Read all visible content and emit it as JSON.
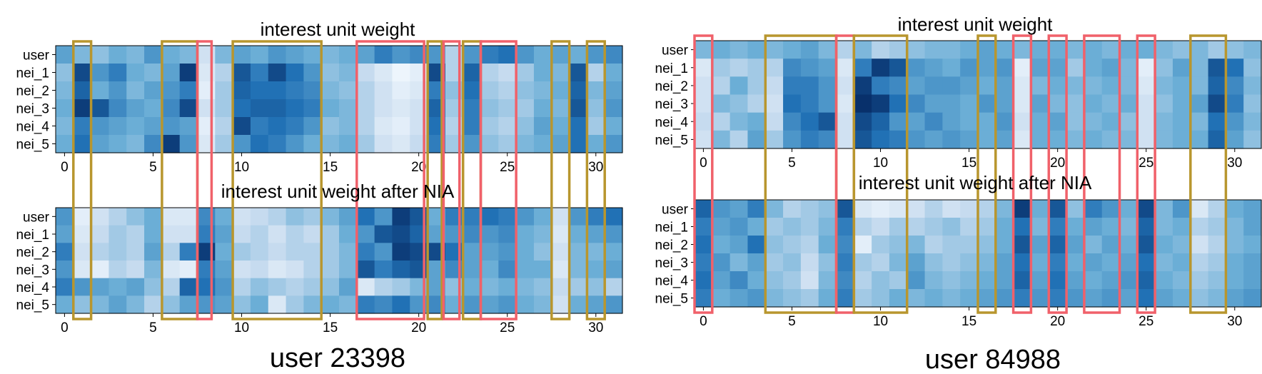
{
  "chart_data": [
    {
      "type": "heatmap",
      "title": "interest unit weight",
      "rows": [
        "user",
        "nei_1",
        "nei_2",
        "nei_3",
        "nei_4",
        "nei_5"
      ],
      "x_ticks": [
        0,
        5,
        10,
        15,
        20,
        25,
        30
      ],
      "columns": 32,
      "colormap": "Blues",
      "values": [
        [
          0.55,
          0.45,
          0.4,
          0.5,
          0.45,
          0.6,
          0.5,
          0.45,
          0.2,
          0.45,
          0.55,
          0.5,
          0.6,
          0.55,
          0.5,
          0.45,
          0.5,
          0.55,
          0.7,
          0.6,
          0.65,
          0.6,
          0.3,
          0.6,
          0.7,
          0.75,
          0.6,
          0.5,
          0.55,
          0.5,
          0.6,
          0.65
        ],
        [
          0.4,
          0.9,
          0.6,
          0.7,
          0.5,
          0.45,
          0.55,
          0.95,
          0.15,
          0.3,
          0.85,
          0.7,
          0.9,
          0.75,
          0.6,
          0.4,
          0.45,
          0.25,
          0.15,
          0.05,
          0.1,
          0.9,
          0.3,
          0.8,
          0.3,
          0.25,
          0.35,
          0.5,
          0.45,
          0.85,
          0.3,
          0.5
        ],
        [
          0.45,
          0.8,
          0.5,
          0.6,
          0.45,
          0.55,
          0.6,
          0.7,
          0.1,
          0.35,
          0.8,
          0.75,
          0.75,
          0.7,
          0.65,
          0.45,
          0.4,
          0.3,
          0.2,
          0.1,
          0.15,
          0.7,
          0.4,
          0.75,
          0.35,
          0.3,
          0.4,
          0.45,
          0.5,
          0.8,
          0.45,
          0.55
        ],
        [
          0.5,
          0.95,
          0.85,
          0.65,
          0.55,
          0.5,
          0.65,
          0.9,
          0.2,
          0.35,
          0.75,
          0.8,
          0.8,
          0.75,
          0.7,
          0.5,
          0.45,
          0.3,
          0.2,
          0.15,
          0.2,
          0.8,
          0.35,
          0.7,
          0.4,
          0.35,
          0.35,
          0.5,
          0.45,
          0.85,
          0.4,
          0.6
        ],
        [
          0.45,
          0.7,
          0.6,
          0.55,
          0.5,
          0.55,
          0.6,
          0.55,
          0.1,
          0.3,
          0.9,
          0.7,
          0.75,
          0.7,
          0.6,
          0.4,
          0.45,
          0.3,
          0.15,
          0.1,
          0.2,
          0.75,
          0.3,
          0.7,
          0.35,
          0.3,
          0.4,
          0.55,
          0.5,
          0.75,
          0.35,
          0.5
        ],
        [
          0.5,
          0.75,
          0.55,
          0.5,
          0.45,
          0.65,
          0.95,
          0.6,
          0.15,
          0.35,
          0.6,
          0.75,
          0.7,
          0.6,
          0.5,
          0.45,
          0.5,
          0.35,
          0.2,
          0.15,
          0.25,
          0.7,
          0.35,
          0.6,
          0.4,
          0.35,
          0.45,
          0.5,
          0.55,
          0.75,
          0.5,
          0.6
        ]
      ]
    },
    {
      "type": "heatmap",
      "title": "interest unit weight after NIA",
      "rows": [
        "user",
        "nei_1",
        "nei_2",
        "nei_3",
        "nei_4",
        "nei_5"
      ],
      "x_ticks": [
        0,
        5,
        10,
        15,
        20,
        25,
        30
      ],
      "columns": 32,
      "colormap": "Blues",
      "values": [
        [
          0.6,
          0.1,
          0.2,
          0.3,
          0.4,
          0.5,
          0.15,
          0.15,
          0.65,
          0.5,
          0.2,
          0.25,
          0.3,
          0.4,
          0.35,
          0.45,
          0.55,
          0.75,
          0.6,
          0.95,
          0.85,
          0.5,
          0.7,
          0.7,
          0.75,
          0.7,
          0.6,
          0.5,
          0.2,
          0.6,
          0.7,
          0.75
        ],
        [
          0.55,
          0.15,
          0.25,
          0.35,
          0.3,
          0.5,
          0.2,
          0.2,
          0.7,
          0.55,
          0.25,
          0.3,
          0.2,
          0.3,
          0.25,
          0.35,
          0.5,
          0.6,
          0.85,
          0.9,
          0.8,
          0.55,
          0.6,
          0.65,
          0.6,
          0.65,
          0.5,
          0.45,
          0.15,
          0.5,
          0.55,
          0.6
        ],
        [
          0.7,
          0.2,
          0.3,
          0.35,
          0.3,
          0.55,
          0.3,
          0.7,
          0.95,
          0.5,
          0.35,
          0.3,
          0.25,
          0.3,
          0.3,
          0.35,
          0.45,
          0.7,
          0.6,
          0.95,
          0.9,
          0.9,
          0.75,
          0.55,
          0.55,
          0.6,
          0.5,
          0.4,
          0.2,
          0.45,
          0.45,
          0.5
        ],
        [
          0.6,
          0.15,
          0.1,
          0.3,
          0.25,
          0.45,
          0.15,
          0.1,
          0.7,
          0.55,
          0.2,
          0.25,
          0.15,
          0.2,
          0.3,
          0.35,
          0.45,
          0.85,
          0.7,
          0.8,
          0.85,
          0.55,
          0.65,
          0.55,
          0.5,
          0.65,
          0.5,
          0.5,
          0.15,
          0.45,
          0.5,
          0.55
        ],
        [
          0.7,
          0.6,
          0.55,
          0.5,
          0.55,
          0.4,
          0.3,
          0.8,
          0.75,
          0.6,
          0.3,
          0.4,
          0.35,
          0.3,
          0.35,
          0.4,
          0.55,
          0.15,
          0.3,
          0.35,
          0.45,
          0.55,
          0.4,
          0.5,
          0.45,
          0.5,
          0.45,
          0.4,
          0.25,
          0.35,
          0.4,
          0.3
        ],
        [
          0.5,
          0.4,
          0.45,
          0.55,
          0.45,
          0.3,
          0.4,
          0.55,
          0.6,
          0.55,
          0.4,
          0.5,
          0.15,
          0.35,
          0.45,
          0.5,
          0.45,
          0.7,
          0.65,
          0.75,
          0.6,
          0.65,
          0.5,
          0.6,
          0.55,
          0.6,
          0.5,
          0.45,
          0.2,
          0.5,
          0.55,
          0.6
        ]
      ]
    },
    {
      "type": "heatmap",
      "title": "interest unit weight",
      "rows": [
        "user",
        "nei_1",
        "nei_2",
        "nei_3",
        "nei_4",
        "nei_5"
      ],
      "x_ticks": [
        0,
        5,
        10,
        15,
        20,
        25,
        30
      ],
      "columns": 32,
      "colormap": "Blues",
      "values": [
        [
          0.45,
          0.5,
          0.45,
          0.5,
          0.45,
          0.5,
          0.55,
          0.45,
          0.3,
          0.45,
          0.3,
          0.35,
          0.4,
          0.45,
          0.45,
          0.5,
          0.55,
          0.5,
          0.45,
          0.5,
          0.5,
          0.45,
          0.5,
          0.45,
          0.5,
          0.5,
          0.45,
          0.4,
          0.45,
          0.35,
          0.4,
          0.45
        ],
        [
          0.15,
          0.35,
          0.3,
          0.35,
          0.3,
          0.65,
          0.6,
          0.55,
          0.15,
          0.7,
          0.95,
          0.85,
          0.6,
          0.55,
          0.5,
          0.6,
          0.55,
          0.6,
          0.1,
          0.55,
          0.55,
          0.35,
          0.5,
          0.55,
          0.45,
          0.1,
          0.4,
          0.55,
          0.45,
          0.85,
          0.75,
          0.4
        ],
        [
          0.2,
          0.3,
          0.5,
          0.35,
          0.25,
          0.7,
          0.7,
          0.6,
          0.2,
          0.95,
          0.7,
          0.65,
          0.55,
          0.6,
          0.6,
          0.55,
          0.5,
          0.55,
          0.15,
          0.45,
          0.5,
          0.45,
          0.45,
          0.5,
          0.45,
          0.15,
          0.45,
          0.5,
          0.45,
          0.8,
          0.65,
          0.45
        ],
        [
          0.2,
          0.45,
          0.4,
          0.3,
          0.2,
          0.75,
          0.7,
          0.6,
          0.15,
          1.0,
          0.95,
          0.75,
          0.65,
          0.55,
          0.55,
          0.5,
          0.6,
          0.55,
          0.15,
          0.55,
          0.45,
          0.4,
          0.5,
          0.45,
          0.5,
          0.2,
          0.4,
          0.5,
          0.55,
          0.9,
          0.7,
          0.4
        ],
        [
          0.25,
          0.3,
          0.45,
          0.5,
          0.25,
          0.65,
          0.75,
          0.85,
          0.2,
          0.9,
          0.8,
          0.6,
          0.55,
          0.65,
          0.55,
          0.5,
          0.5,
          0.6,
          0.2,
          0.5,
          0.55,
          0.4,
          0.45,
          0.5,
          0.4,
          0.2,
          0.45,
          0.5,
          0.45,
          0.75,
          0.6,
          0.45
        ],
        [
          0.2,
          0.45,
          0.3,
          0.55,
          0.35,
          0.6,
          0.7,
          0.65,
          0.2,
          0.85,
          0.75,
          0.7,
          0.6,
          0.55,
          0.6,
          0.55,
          0.5,
          0.55,
          0.15,
          0.5,
          0.5,
          0.45,
          0.5,
          0.45,
          0.45,
          0.2,
          0.45,
          0.5,
          0.5,
          0.8,
          0.55,
          0.4
        ]
      ]
    },
    {
      "type": "heatmap",
      "title": "interest unit weight after NIA",
      "rows": [
        "user",
        "nei_1",
        "nei_2",
        "nei_3",
        "nei_4",
        "nei_5"
      ],
      "x_ticks": [
        0,
        5,
        10,
        15,
        20,
        25,
        30
      ],
      "columns": 32,
      "colormap": "Blues",
      "values": [
        [
          0.8,
          0.6,
          0.55,
          0.7,
          0.45,
          0.3,
          0.35,
          0.4,
          0.85,
          0.15,
          0.1,
          0.15,
          0.2,
          0.3,
          0.2,
          0.25,
          0.3,
          0.45,
          0.95,
          0.5,
          0.85,
          0.4,
          0.7,
          0.6,
          0.5,
          0.9,
          0.45,
          0.6,
          0.15,
          0.3,
          0.5,
          0.55
        ],
        [
          0.7,
          0.55,
          0.6,
          0.5,
          0.35,
          0.4,
          0.35,
          0.45,
          0.7,
          0.3,
          0.25,
          0.35,
          0.3,
          0.35,
          0.4,
          0.3,
          0.35,
          0.5,
          0.75,
          0.45,
          0.7,
          0.5,
          0.55,
          0.5,
          0.45,
          0.8,
          0.45,
          0.5,
          0.3,
          0.35,
          0.45,
          0.55
        ],
        [
          0.75,
          0.5,
          0.55,
          0.75,
          0.4,
          0.35,
          0.3,
          0.5,
          0.65,
          0.1,
          0.35,
          0.4,
          0.45,
          0.3,
          0.35,
          0.35,
          0.4,
          0.5,
          0.85,
          0.55,
          0.8,
          0.55,
          0.45,
          0.55,
          0.5,
          0.85,
          0.5,
          0.45,
          0.2,
          0.3,
          0.45,
          0.5
        ],
        [
          0.7,
          0.6,
          0.45,
          0.55,
          0.35,
          0.4,
          0.25,
          0.4,
          0.7,
          0.35,
          0.3,
          0.45,
          0.55,
          0.4,
          0.35,
          0.4,
          0.45,
          0.55,
          0.75,
          0.5,
          0.7,
          0.5,
          0.55,
          0.5,
          0.55,
          0.75,
          0.45,
          0.5,
          0.3,
          0.35,
          0.5,
          0.55
        ],
        [
          0.75,
          0.55,
          0.65,
          0.5,
          0.4,
          0.35,
          0.2,
          0.45,
          0.65,
          0.3,
          0.4,
          0.35,
          0.6,
          0.45,
          0.4,
          0.45,
          0.5,
          0.55,
          0.8,
          0.55,
          0.75,
          0.55,
          0.5,
          0.55,
          0.6,
          0.8,
          0.5,
          0.45,
          0.35,
          0.4,
          0.5,
          0.55
        ],
        [
          0.7,
          0.5,
          0.55,
          0.6,
          0.45,
          0.4,
          0.35,
          0.5,
          0.7,
          0.35,
          0.4,
          0.5,
          0.45,
          0.5,
          0.45,
          0.5,
          0.55,
          0.6,
          0.7,
          0.6,
          0.7,
          0.6,
          0.55,
          0.6,
          0.55,
          0.75,
          0.55,
          0.5,
          0.4,
          0.45,
          0.55,
          0.6
        ]
      ]
    }
  ],
  "captions": [
    "user 23398",
    "user 84988"
  ],
  "highlight_colors": {
    "gold": "#B8962E",
    "red": "#F0616A"
  },
  "highlights": [
    {
      "panel": "left",
      "color": "gold",
      "col_start": 0.5,
      "col_end": 1.5
    },
    {
      "panel": "left",
      "color": "gold",
      "col_start": 5.5,
      "col_end": 7.5
    },
    {
      "panel": "left",
      "color": "red",
      "col_start": 7.5,
      "col_end": 8.3
    },
    {
      "panel": "left",
      "color": "gold",
      "col_start": 9.5,
      "col_end": 14.5
    },
    {
      "panel": "left",
      "color": "red",
      "col_start": 16.5,
      "col_end": 20.3
    },
    {
      "panel": "left",
      "color": "gold",
      "col_start": 20.5,
      "col_end": 21.3
    },
    {
      "panel": "left",
      "color": "red",
      "col_start": 21.4,
      "col_end": 22.3
    },
    {
      "panel": "left",
      "color": "gold",
      "col_start": 22.5,
      "col_end": 23.5
    },
    {
      "panel": "left",
      "color": "red",
      "col_start": 23.5,
      "col_end": 25.5
    },
    {
      "panel": "left",
      "color": "gold",
      "col_start": 27.5,
      "col_end": 28.5
    },
    {
      "panel": "left",
      "color": "gold",
      "col_start": 29.5,
      "col_end": 30.5
    },
    {
      "panel": "right",
      "color": "red",
      "col_start": -0.5,
      "col_end": 0.5
    },
    {
      "panel": "right",
      "color": "gold",
      "col_start": 3.5,
      "col_end": 7.5
    },
    {
      "panel": "right",
      "color": "red",
      "col_start": 7.5,
      "col_end": 8.5
    },
    {
      "panel": "right",
      "color": "gold",
      "col_start": 8.5,
      "col_end": 11.5
    },
    {
      "panel": "right",
      "color": "gold",
      "col_start": 15.5,
      "col_end": 16.5
    },
    {
      "panel": "right",
      "color": "red",
      "col_start": 17.5,
      "col_end": 18.5
    },
    {
      "panel": "right",
      "color": "red",
      "col_start": 19.5,
      "col_end": 20.5
    },
    {
      "panel": "right",
      "color": "red",
      "col_start": 21.5,
      "col_end": 23.5
    },
    {
      "panel": "right",
      "color": "red",
      "col_start": 24.5,
      "col_end": 25.5
    },
    {
      "panel": "right",
      "color": "gold",
      "col_start": 27.5,
      "col_end": 29.5
    }
  ]
}
